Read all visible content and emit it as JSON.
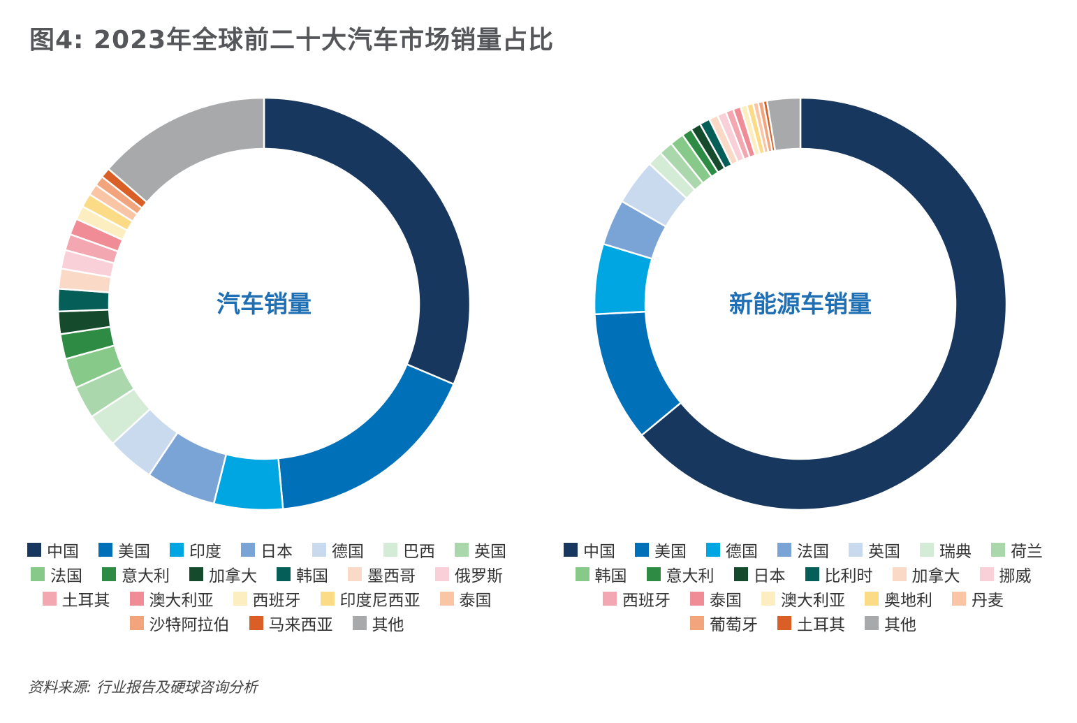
{
  "title": "图4: 2023年全球前二十大汽车市场销量占比",
  "source": "资料来源: 行业报告及硬球咨询分析",
  "chart_data": [
    {
      "type": "pie",
      "subtype": "donut",
      "title": "汽车销量",
      "title_color": "#1f6fb5",
      "legend_position": "bottom",
      "slices": [
        {
          "label": "中国",
          "value": 32.0,
          "color": "#17375e"
        },
        {
          "label": "美国",
          "value": 17.5,
          "color": "#0070b8"
        },
        {
          "label": "印度",
          "value": 5.5,
          "color": "#00a6e2"
        },
        {
          "label": "日本",
          "value": 5.6,
          "color": "#7ba4d6"
        },
        {
          "label": "德国",
          "value": 3.8,
          "color": "#c9daee"
        },
        {
          "label": "巴西",
          "value": 2.7,
          "color": "#d4ebd6"
        },
        {
          "label": "英国",
          "value": 2.6,
          "color": "#abd7ac"
        },
        {
          "label": "法国",
          "value": 2.4,
          "color": "#87c989"
        },
        {
          "label": "意大利",
          "value": 2.0,
          "color": "#2e8b43"
        },
        {
          "label": "加拿大",
          "value": 1.8,
          "color": "#154a2d"
        },
        {
          "label": "韩国",
          "value": 1.8,
          "color": "#055e57"
        },
        {
          "label": "墨西哥",
          "value": 1.6,
          "color": "#fad9c6"
        },
        {
          "label": "俄罗斯",
          "value": 1.5,
          "color": "#f9d0d8"
        },
        {
          "label": "土耳其",
          "value": 1.3,
          "color": "#f3a7b1"
        },
        {
          "label": "澳大利亚",
          "value": 1.3,
          "color": "#ef8c96"
        },
        {
          "label": "西班牙",
          "value": 1.1,
          "color": "#fdeec2"
        },
        {
          "label": "印度尼西亚",
          "value": 1.1,
          "color": "#fbdb86"
        },
        {
          "label": "泰国",
          "value": 0.9,
          "color": "#f9c5a5"
        },
        {
          "label": "沙特阿拉伯",
          "value": 0.8,
          "color": "#f2a47c"
        },
        {
          "label": "马来西亚",
          "value": 0.8,
          "color": "#d95f26"
        },
        {
          "label": "其他",
          "value": 13.9,
          "color": "#a8a9ab"
        }
      ]
    },
    {
      "type": "pie",
      "subtype": "donut",
      "title": "新能源车销量",
      "title_color": "#1f6fb5",
      "legend_position": "bottom",
      "slices": [
        {
          "label": "中国",
          "value": 64.0,
          "color": "#17375e"
        },
        {
          "label": "美国",
          "value": 10.2,
          "color": "#0070b8"
        },
        {
          "label": "德国",
          "value": 5.5,
          "color": "#00a6e2"
        },
        {
          "label": "法国",
          "value": 3.6,
          "color": "#7ba4d6"
        },
        {
          "label": "英国",
          "value": 3.6,
          "color": "#c9daee"
        },
        {
          "label": "瑞典",
          "value": 1.2,
          "color": "#d4ebd6"
        },
        {
          "label": "荷兰",
          "value": 1.1,
          "color": "#abd7ac"
        },
        {
          "label": "韩国",
          "value": 1.1,
          "color": "#87c989"
        },
        {
          "label": "意大利",
          "value": 0.8,
          "color": "#2e8b43"
        },
        {
          "label": "日本",
          "value": 0.8,
          "color": "#154a2d"
        },
        {
          "label": "比利时",
          "value": 0.8,
          "color": "#055e57"
        },
        {
          "label": "加拿大",
          "value": 0.7,
          "color": "#fad9c6"
        },
        {
          "label": "挪威",
          "value": 0.7,
          "color": "#f9d0d8"
        },
        {
          "label": "西班牙",
          "value": 0.6,
          "color": "#f3a7b1"
        },
        {
          "label": "泰国",
          "value": 0.6,
          "color": "#ef8c96"
        },
        {
          "label": "澳大利亚",
          "value": 0.5,
          "color": "#fdeec2"
        },
        {
          "label": "奥地利",
          "value": 0.5,
          "color": "#fbdb86"
        },
        {
          "label": "丹麦",
          "value": 0.4,
          "color": "#f9c5a5"
        },
        {
          "label": "葡萄牙",
          "value": 0.4,
          "color": "#f2a47c"
        },
        {
          "label": "土耳其",
          "value": 0.3,
          "color": "#d95f26"
        },
        {
          "label": "其他",
          "value": 2.6,
          "color": "#a8a9ab"
        }
      ]
    }
  ]
}
